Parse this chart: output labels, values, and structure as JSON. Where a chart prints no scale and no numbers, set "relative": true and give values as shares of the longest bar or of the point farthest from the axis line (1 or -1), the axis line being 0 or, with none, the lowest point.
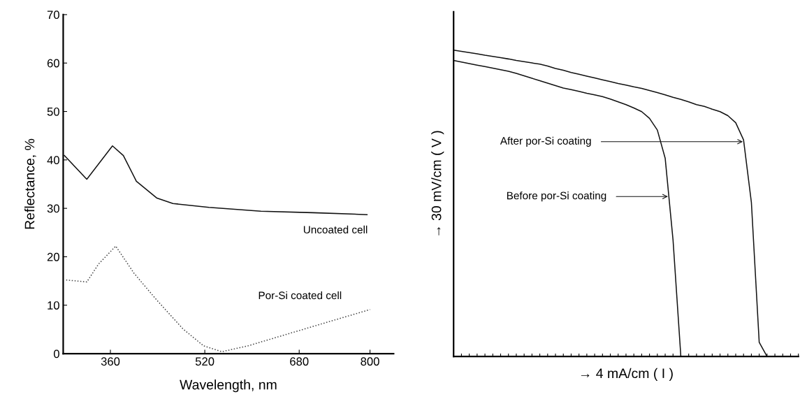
{
  "chart_data": [
    {
      "type": "line",
      "xlabel": "Wavelength, nm",
      "ylabel": "Reflectance, %",
      "xlim": [
        280,
        840
      ],
      "ylim": [
        0,
        70
      ],
      "xticks": [
        360,
        520,
        680,
        800
      ],
      "yticks": [
        0,
        10,
        20,
        30,
        40,
        50,
        60,
        70
      ],
      "series": [
        {
          "color": "#111111",
          "line_style": "solid",
          "x": [
            282,
            320,
            363.5,
            382,
            404,
            439,
            466,
            527,
            615,
            703,
            795
          ],
          "values": [
            40.9,
            36,
            42.9,
            40.9,
            35.6,
            32.1,
            31,
            30.2,
            29.4,
            29.1,
            28.7
          ]
        },
        {
          "color": "#444444",
          "line_style": "dotted",
          "x": [
            285,
            320,
            340,
            369,
            400,
            439,
            483,
            518,
            549,
            593,
            659,
            725,
            800
          ],
          "values": [
            15.2,
            14.8,
            18.5,
            22.2,
            16.6,
            11,
            5.1,
            1.6,
            0.4,
            1.6,
            4,
            6.4,
            9.1
          ]
        }
      ],
      "annotations": [
        "Uncoated cell",
        "Por-Si coated cell"
      ]
    },
    {
      "type": "line",
      "xlabel": "→ 4 mA/cm ( I )",
      "ylabel": "→ 30 mV/cm ( V )",
      "relative": true,
      "tick_labels": false,
      "categories": [
        null,
        null,
        null,
        null,
        null,
        null,
        null,
        null,
        null,
        null,
        null,
        null,
        null,
        null,
        null,
        null,
        null,
        null,
        null,
        null,
        null,
        null,
        null,
        null,
        null,
        null,
        null,
        null,
        null,
        null,
        null,
        null,
        null,
        null,
        null,
        null,
        null,
        null,
        null,
        null,
        null,
        null,
        null,
        null,
        null
      ],
      "series": [
        {
          "color": "#111111",
          "line_style": "solid",
          "values": [
            1.0,
            0.996,
            0.992,
            0.988,
            0.983,
            0.979,
            0.975,
            0.971,
            0.966,
            0.962,
            0.958,
            0.954,
            0.948,
            0.94,
            0.934,
            0.927,
            0.921,
            0.915,
            0.909,
            0.903,
            0.897,
            0.891,
            0.886,
            0.88,
            0.875,
            0.868,
            0.861,
            0.854,
            0.846,
            0.839,
            0.831,
            0.822,
            0.816,
            0.807,
            0.799,
            0.786,
            0.763,
            0.707,
            0.503,
            0.046,
            0,
            0,
            0,
            0,
            0
          ]
        },
        {
          "color": "#111111",
          "line_style": "solid",
          "values": [
            0.966,
            0.961,
            0.956,
            0.951,
            0.946,
            0.941,
            0.936,
            0.931,
            0.924,
            0.916,
            0.908,
            0.9,
            0.892,
            0.884,
            0.876,
            0.871,
            0.865,
            0.859,
            0.854,
            0.848,
            0.84,
            0.831,
            0.822,
            0.811,
            0.799,
            0.777,
            0.739,
            0.647,
            0.381,
            0,
            0,
            0,
            0,
            0,
            0,
            0,
            0,
            0,
            0,
            0,
            0,
            0,
            0,
            0,
            0
          ]
        }
      ],
      "annotations": [
        "After por-Si coating",
        "Before por-Si coating"
      ]
    }
  ]
}
